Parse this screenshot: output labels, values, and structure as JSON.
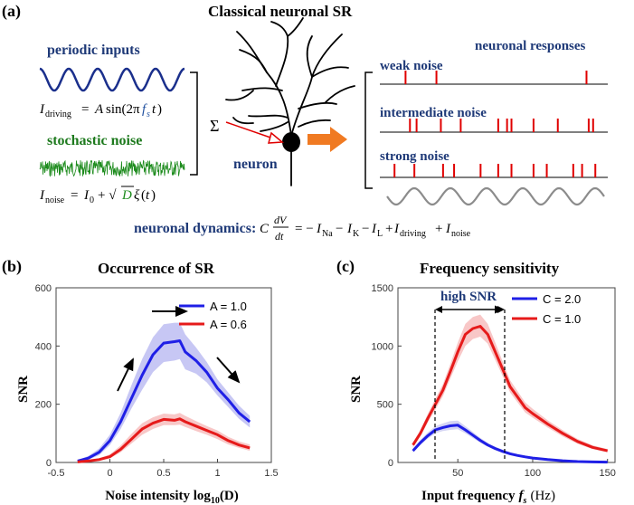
{
  "panel_a": {
    "label": "(a)",
    "title": "Classical neuronal SR",
    "periodic_inputs": "periodic inputs",
    "stochastic_noise": "stochastic noise",
    "neuron_label": "neuron",
    "neuronal_responses": "neuronal responses",
    "weak_noise": "weak noise",
    "intermediate_noise": "intermediate noise",
    "strong_noise": "strong noise",
    "sum_symbol": "Σ",
    "eq_driving": "I_driving = A sin(2πf_s t)",
    "eq_noise": "I_noise = I_0 + √D ξ(t)",
    "dynamics_label": "neuronal dynamics:",
    "dynamics_eq": "C dV/dt = −I_Na − I_K −I_L +I_driving + I_noise",
    "spikes": {
      "weak": [
        0.1,
        0.24,
        0.92
      ],
      "intermediate": [
        0.12,
        0.15,
        0.26,
        0.35,
        0.52,
        0.56,
        0.58,
        0.68,
        0.79,
        0.93,
        0.95
      ],
      "strong": [
        0.05,
        0.14,
        0.27,
        0.32,
        0.44,
        0.52,
        0.58,
        0.68,
        0.74,
        0.86,
        0.9,
        0.96
      ]
    },
    "colors": {
      "sine": "#1a2f8c",
      "noise": "#1e8c1e",
      "spike": "#e00000",
      "arrow": "#f07a22",
      "gray_wave": "#8c8c8c"
    }
  },
  "panel_b": {
    "label": "(b)",
    "title": "Occurrence of SR",
    "ylabel": "SNR",
    "xlabel": "Noise intensity log",
    "xlabel_sub": "10",
    "xlabel_arg": "(D)",
    "legend": [
      "A = 1.0",
      "A = 0.6"
    ],
    "xticks": [
      "-0.5",
      "0",
      "0.5",
      "1",
      "1.5"
    ],
    "yticks": [
      "0",
      "200",
      "400",
      "600"
    ]
  },
  "panel_c": {
    "label": "(c)",
    "title": "Frequency sensitivity",
    "ylabel": "SNR",
    "xlabel": "Input frequency",
    "xlabel_var": "f",
    "xlabel_sub": "s",
    "xlabel_unit": "(Hz)",
    "annotation": "high SNR",
    "legend": [
      "C = 2.0",
      "C = 1.0"
    ],
    "xticks": [
      "50",
      "100",
      "150"
    ],
    "yticks": [
      "0",
      "500",
      "1000",
      "1500"
    ]
  },
  "chart_data": [
    {
      "type": "line",
      "title": "Occurrence of SR",
      "xlabel": "Noise intensity log10(D)",
      "ylabel": "SNR",
      "xlim": [
        -0.5,
        1.5
      ],
      "ylim": [
        0,
        600
      ],
      "x": [
        -0.3,
        -0.2,
        -0.1,
        0.0,
        0.1,
        0.2,
        0.3,
        0.4,
        0.5,
        0.6,
        0.65,
        0.7,
        0.8,
        0.9,
        1.0,
        1.1,
        1.2,
        1.3
      ],
      "series": [
        {
          "name": "A = 1.0",
          "color": "#1f1fe6",
          "band": "#b4b4f0",
          "values": [
            5,
            15,
            35,
            75,
            140,
            220,
            300,
            370,
            410,
            415,
            418,
            380,
            350,
            310,
            255,
            215,
            170,
            140
          ],
          "lower": [
            3,
            10,
            25,
            60,
            115,
            185,
            250,
            310,
            345,
            350,
            355,
            320,
            305,
            275,
            230,
            190,
            150,
            120
          ],
          "upper": [
            8,
            22,
            48,
            95,
            170,
            265,
            355,
            430,
            475,
            480,
            480,
            440,
            395,
            345,
            285,
            240,
            195,
            160
          ]
        },
        {
          "name": "A = 0.6",
          "color": "#e61a1a",
          "band": "#f5b4b4",
          "values": [
            2,
            5,
            10,
            20,
            45,
            80,
            115,
            135,
            148,
            145,
            150,
            140,
            125,
            110,
            95,
            75,
            60,
            50
          ],
          "lower": [
            1,
            3,
            6,
            14,
            35,
            65,
            95,
            115,
            128,
            128,
            130,
            122,
            108,
            95,
            80,
            62,
            50,
            40
          ],
          "upper": [
            4,
            8,
            14,
            28,
            58,
            98,
            135,
            155,
            168,
            165,
            170,
            160,
            142,
            125,
            110,
            88,
            72,
            62
          ]
        }
      ]
    },
    {
      "type": "line",
      "title": "Frequency sensitivity",
      "xlabel": "Input frequency f_s (Hz)",
      "ylabel": "SNR",
      "xlim": [
        10,
        155
      ],
      "ylim": [
        0,
        1500
      ],
      "x": [
        20,
        25,
        30,
        35,
        40,
        45,
        50,
        55,
        60,
        65,
        70,
        75,
        80,
        85,
        90,
        95,
        100,
        110,
        120,
        130,
        140,
        150
      ],
      "series": [
        {
          "name": "C = 2.0",
          "color": "#1f1fe6",
          "band": "#c6c6f0",
          "values": [
            100,
            170,
            230,
            280,
            300,
            315,
            320,
            280,
            235,
            190,
            150,
            120,
            95,
            75,
            60,
            48,
            38,
            25,
            15,
            8,
            5,
            3
          ],
          "lower": [
            85,
            150,
            205,
            250,
            270,
            280,
            285,
            250,
            210,
            170,
            135,
            105,
            85,
            65,
            52,
            40,
            32,
            20,
            12,
            6,
            3,
            2
          ],
          "upper": [
            118,
            192,
            258,
            312,
            335,
            355,
            360,
            312,
            262,
            212,
            168,
            135,
            108,
            86,
            70,
            56,
            46,
            32,
            20,
            12,
            8,
            5
          ]
        },
        {
          "name": "C = 1.0",
          "color": "#e61a1a",
          "band": "#f5b4b4",
          "values": [
            150,
            250,
            380,
            500,
            620,
            780,
            950,
            1100,
            1150,
            1170,
            1100,
            950,
            800,
            650,
            560,
            470,
            420,
            330,
            250,
            180,
            130,
            100
          ],
          "lower": [
            130,
            225,
            345,
            455,
            570,
            720,
            870,
            1000,
            1060,
            1080,
            1020,
            880,
            740,
            600,
            515,
            430,
            385,
            300,
            225,
            160,
            115,
            88
          ],
          "upper": [
            172,
            278,
            418,
            548,
            672,
            845,
            1030,
            1190,
            1250,
            1270,
            1190,
            1030,
            865,
            705,
            610,
            515,
            460,
            362,
            278,
            202,
            148,
            115
          ]
        }
      ]
    }
  ]
}
